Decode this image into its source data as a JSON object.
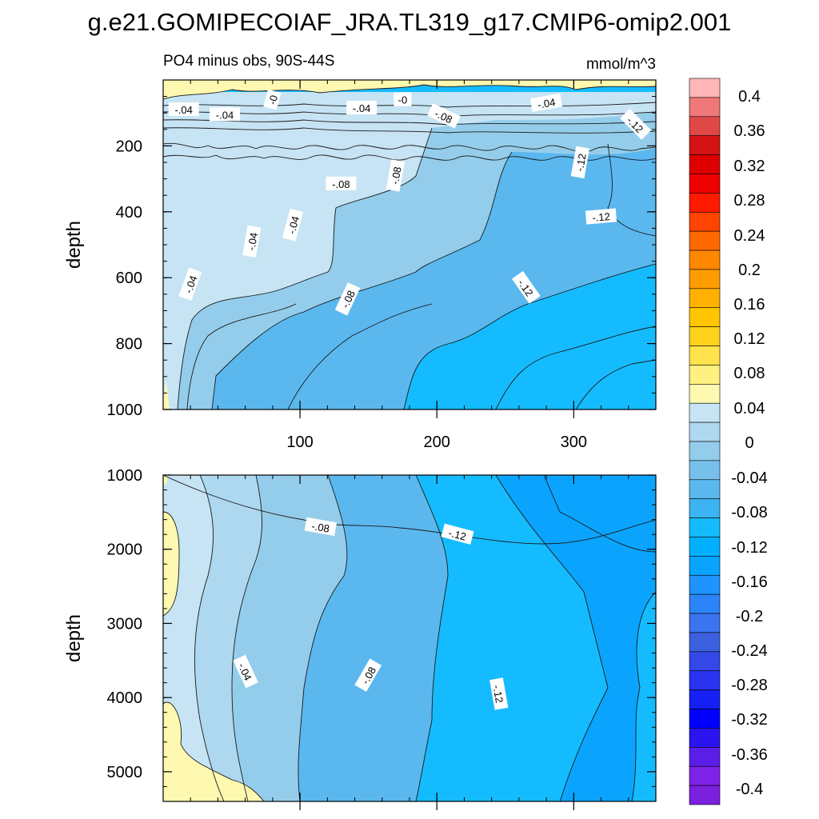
{
  "figure": {
    "title": "g.e21.GOMIPECOIAF_JRA.TL319_g17.CMIP6-omip2.001"
  },
  "chart_data": [
    {
      "type": "contour",
      "panel": "upper",
      "subtitle_left": "PO4 minus obs, 90S-44S",
      "subtitle_right": "mmol/m^3",
      "ylabel": "depth",
      "xlabel": "",
      "xlim": [
        0,
        360
      ],
      "ylim": [
        1000,
        0
      ],
      "xticks": [
        {
          "value": 100,
          "label": "100"
        },
        {
          "value": 200,
          "label": "200"
        },
        {
          "value": 300,
          "label": "300"
        }
      ],
      "yticks": [
        {
          "value": 200,
          "label": "200"
        },
        {
          "value": 400,
          "label": "400"
        },
        {
          "value": 600,
          "label": "600"
        },
        {
          "value": 800,
          "label": "800"
        },
        {
          "value": 1000,
          "label": "1000"
        }
      ],
      "contour_labels": [
        {
          "text": "-.04",
          "x": 15,
          "y": 90,
          "angle": 0
        },
        {
          "text": "-.04",
          "x": 45,
          "y": 105,
          "angle": 0
        },
        {
          "text": "-0",
          "x": 80,
          "y": 60,
          "angle": -75
        },
        {
          "text": "-.04",
          "x": 145,
          "y": 85,
          "angle": 0
        },
        {
          "text": "-0",
          "x": 175,
          "y": 60,
          "angle": 0
        },
        {
          "text": "-.08",
          "x": 205,
          "y": 110,
          "angle": 25
        },
        {
          "text": "-.04",
          "x": 280,
          "y": 70,
          "angle": -10
        },
        {
          "text": "-.12",
          "x": 345,
          "y": 135,
          "angle": 45
        },
        {
          "text": "-.12",
          "x": 305,
          "y": 250,
          "angle": -80
        },
        {
          "text": "-.08",
          "x": 170,
          "y": 290,
          "angle": -80
        },
        {
          "text": "-.08",
          "x": 130,
          "y": 315,
          "angle": 0
        },
        {
          "text": "-.12",
          "x": 320,
          "y": 415,
          "angle": -5
        },
        {
          "text": "-.04",
          "x": 95,
          "y": 440,
          "angle": -75
        },
        {
          "text": "-.04",
          "x": 65,
          "y": 490,
          "angle": -80
        },
        {
          "text": "-.04",
          "x": 20,
          "y": 620,
          "angle": -70
        },
        {
          "text": "-.08",
          "x": 135,
          "y": 665,
          "angle": -65
        },
        {
          "text": "-.12",
          "x": 265,
          "y": 630,
          "angle": 55
        }
      ]
    },
    {
      "type": "contour",
      "panel": "lower",
      "ylabel": "depth",
      "xlabel": "",
      "xlim": [
        0,
        360
      ],
      "ylim": [
        5400,
        1000
      ],
      "xticks": [
        {
          "value": 100,
          "label": ""
        },
        {
          "value": 200,
          "label": ""
        },
        {
          "value": 300,
          "label": ""
        }
      ],
      "yticks": [
        {
          "value": 1000,
          "label": "1000"
        },
        {
          "value": 2000,
          "label": "2000"
        },
        {
          "value": 3000,
          "label": "3000"
        },
        {
          "value": 4000,
          "label": "4000"
        },
        {
          "value": 5000,
          "label": "5000"
        }
      ],
      "contour_labels": [
        {
          "text": "-.08",
          "x": 115,
          "y": 1700,
          "angle": 10
        },
        {
          "text": "-.12",
          "x": 215,
          "y": 1800,
          "angle": 15
        },
        {
          "text": "-.04",
          "x": 60,
          "y": 3650,
          "angle": 65
        },
        {
          "text": "-.08",
          "x": 150,
          "y": 3700,
          "angle": -60
        },
        {
          "text": "-.12",
          "x": 245,
          "y": 3950,
          "angle": 80
        }
      ]
    }
  ],
  "colorbar": {
    "labels": [
      "0.4",
      "0.36",
      "0.32",
      "0.28",
      "0.24",
      "0.2",
      "0.16",
      "0.12",
      "0.08",
      "0.04",
      "0",
      "-0.04",
      "-0.08",
      "-0.12",
      "-0.16",
      "-0.2",
      "-0.24",
      "-0.28",
      "-0.32",
      "-0.36",
      "-0.4"
    ],
    "colors": [
      "#ffb6b6",
      "#f07878",
      "#e04848",
      "#d41414",
      "#de0000",
      "#ee0000",
      "#ff1a00",
      "#ff4400",
      "#ff6a00",
      "#ff8800",
      "#ff9d00",
      "#ffb000",
      "#ffc500",
      "#ffd21e",
      "#ffe24c",
      "#fff080",
      "#fff8b0",
      "#c6e4f4",
      "#aed8ef",
      "#94cdeb",
      "#78c0ec",
      "#5ab8ef",
      "#3cb4f4",
      "#14bcff",
      "#00b0ff",
      "#0aa4ff",
      "#1e94ff",
      "#2b84f8",
      "#3a74f0",
      "#3c60e0",
      "#3448e8",
      "#2834f0",
      "#1420f4",
      "#0000ff",
      "#2a14f0",
      "#5a1ee8",
      "#7f22e8",
      "#7c20e0"
    ]
  }
}
